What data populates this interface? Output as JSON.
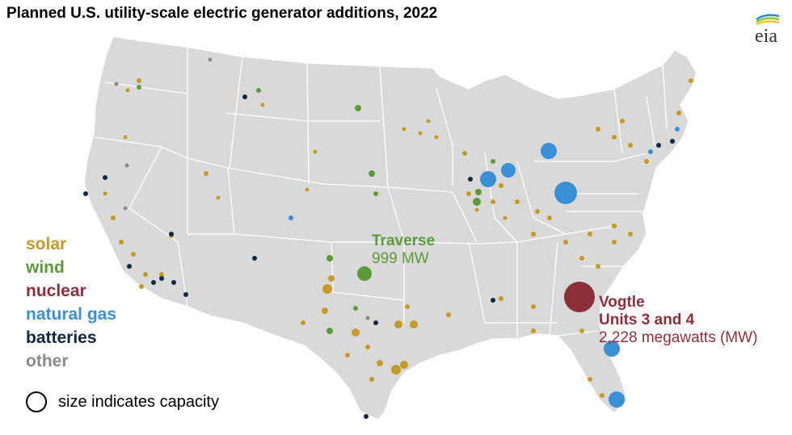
{
  "title": "Planned U.S. utility-scale electric generator additions, 2022",
  "logo": {
    "text": "eia",
    "icon": "eia-logo-icon"
  },
  "colors": {
    "solar": "#c49a2b",
    "wind": "#5f9a3a",
    "nuclear": "#8b2f3b",
    "natural_gas": "#3b8fd4",
    "batteries": "#10273f",
    "other": "#8a8a8a",
    "land": "#d9d9d9",
    "border": "#ffffff"
  },
  "legend": [
    {
      "key": "solar",
      "label": "solar"
    },
    {
      "key": "wind",
      "label": "wind"
    },
    {
      "key": "nuclear",
      "label": "nuclear"
    },
    {
      "key": "natural_gas",
      "label": "natural gas"
    },
    {
      "key": "batteries",
      "label": "batteries"
    },
    {
      "key": "other",
      "label": "other"
    }
  ],
  "size_legend": "size indicates capacity",
  "annotations": {
    "traverse": {
      "name": "Traverse",
      "capacity": "999 MW"
    },
    "vogtle": {
      "name": "Vogtle",
      "line2": "Units 3 and 4",
      "capacity": "2,228 megawatts (MW)"
    }
  }
}
